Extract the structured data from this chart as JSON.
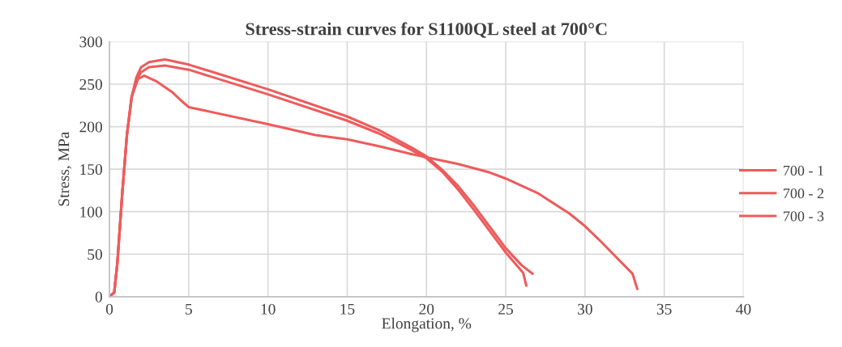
{
  "chart_data": {
    "type": "line",
    "title": "Stress-strain curves for S1100QL steel at 700°C",
    "xlabel": "Elongation, %",
    "ylabel": "Stress, MPa",
    "xlim": [
      0,
      40
    ],
    "xticks": [
      0,
      5,
      10,
      15,
      20,
      25,
      30,
      35,
      40
    ],
    "ylim": [
      0,
      300
    ],
    "yticks": [
      0,
      50,
      100,
      150,
      200,
      250,
      300
    ],
    "grid": true,
    "legend": "right",
    "marker": "none",
    "line_style": "solid",
    "series": [
      {
        "name": "700 - 1",
        "color": "#ee5b5b",
        "x": [
          0,
          0.3,
          0.5,
          0.8,
          1.1,
          1.4,
          1.7,
          2,
          2.5,
          3.5,
          5,
          10,
          15,
          17,
          19,
          20,
          21,
          22,
          23,
          24,
          25,
          26,
          26.7
        ],
        "values": [
          0,
          5,
          40,
          120,
          190,
          235,
          258,
          270,
          276,
          279,
          273,
          244,
          212,
          196,
          176,
          165,
          149,
          130,
          107,
          82,
          57,
          37,
          27
        ]
      },
      {
        "name": "700 - 2",
        "color": "#ee5b5b",
        "x": [
          0,
          0.3,
          0.5,
          0.8,
          1.1,
          1.4,
          1.7,
          2,
          2.5,
          3.5,
          5,
          10,
          15,
          17,
          19,
          20,
          21,
          22,
          23,
          24,
          25,
          26.1,
          26.3
        ],
        "values": [
          0,
          5,
          40,
          120,
          190,
          235,
          255,
          264,
          270,
          272,
          267,
          238,
          207,
          192,
          173,
          163,
          147,
          126,
          102,
          77,
          52,
          28,
          13
        ]
      },
      {
        "name": "700 - 3",
        "color": "#ee5b5b",
        "x": [
          0,
          0.3,
          0.5,
          0.8,
          1.1,
          1.4,
          1.8,
          2.2,
          3,
          4,
          4.5,
          5,
          10,
          13,
          15,
          17,
          19,
          20,
          22,
          24,
          25,
          27,
          29,
          30,
          31,
          32,
          33,
          33.3
        ],
        "values": [
          0,
          5,
          40,
          120,
          190,
          235,
          256,
          260,
          253,
          240,
          231,
          223,
          203,
          190,
          185,
          177,
          168,
          164,
          156,
          146,
          139,
          122,
          98,
          83,
          65,
          46,
          27,
          9
        ]
      }
    ]
  }
}
